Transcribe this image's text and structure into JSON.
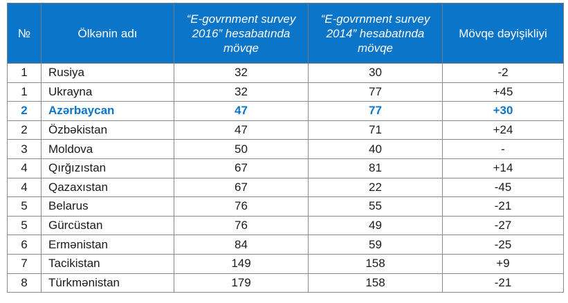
{
  "table": {
    "headers": {
      "num": "№",
      "country": "Ölkənin adı",
      "survey_2016": "“E-govrnment survey 2016” hesabatında mövqe",
      "survey_2014": "“E-govrnment survey 2014” hesabatında mövqe",
      "change": "Mövqe dəyişikliyi"
    },
    "rows": [
      {
        "num": "1",
        "country": "Rusiya",
        "y2016": "32",
        "y2014": "30",
        "change": "-2"
      },
      {
        "num": "1",
        "country": "Ukrayna",
        "y2016": "32",
        "y2014": "77",
        "change": "+45"
      },
      {
        "num": "2",
        "country": "Azərbaycan",
        "y2016": "47",
        "y2014": "77",
        "change": "+30"
      },
      {
        "num": "2",
        "country": "Özbəkistan",
        "y2016": "47",
        "y2014": "71",
        "change": "+24"
      },
      {
        "num": "3",
        "country": "Moldova",
        "y2016": "50",
        "y2014": "40",
        "change": "-"
      },
      {
        "num": "4",
        "country": "Qırğızıstan",
        "y2016": "67",
        "y2014": "81",
        "change": "+14"
      },
      {
        "num": "4",
        "country": "Qazaxıstan",
        "y2016": "67",
        "y2014": "22",
        "change": "-45"
      },
      {
        "num": "5",
        "country": "Belarus",
        "y2016": "76",
        "y2014": "55",
        "change": "-21"
      },
      {
        "num": "5",
        "country": "Gürcüstan",
        "y2016": "76",
        "y2014": "49",
        "change": "-27"
      },
      {
        "num": "6",
        "country": "Ermənistan",
        "y2016": "84",
        "y2014": "59",
        "change": "-25"
      },
      {
        "num": "7",
        "country": "Tacikistan",
        "y2016": "149",
        "y2014": "158",
        "change": "+9"
      },
      {
        "num": "8",
        "country": "Türkmənistan",
        "y2016": "179",
        "y2014": "158",
        "change": "-21"
      }
    ],
    "highlight_color": "#0b75c9",
    "header_background": "#0b75c9"
  }
}
